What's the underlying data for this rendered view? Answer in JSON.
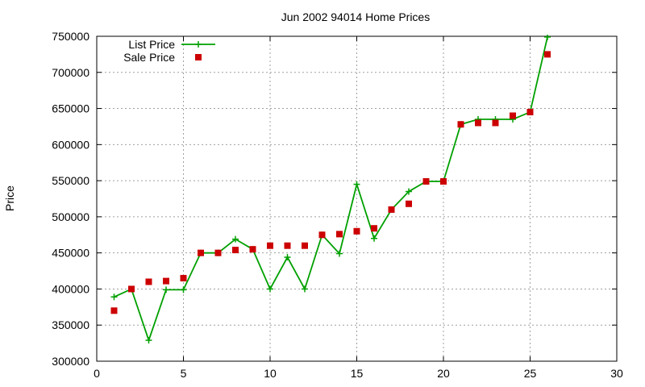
{
  "chart_data": {
    "type": "line",
    "title": "Jun 2002 94014 Home Prices",
    "xlabel": "",
    "ylabel": "Price",
    "xlim": [
      0,
      30
    ],
    "ylim": [
      300000,
      750000
    ],
    "xticks": [
      0,
      5,
      10,
      15,
      20,
      25,
      30
    ],
    "yticks": [
      300000,
      350000,
      400000,
      450000,
      500000,
      550000,
      600000,
      650000,
      700000,
      750000
    ],
    "grid": true,
    "legend_position": "top-left",
    "series": [
      {
        "name": "List Price",
        "style": "line-plus",
        "color": "#00a000",
        "x": [
          1,
          2,
          3,
          4,
          5,
          6,
          7,
          8,
          9,
          10,
          11,
          12,
          13,
          14,
          15,
          16,
          17,
          18,
          19,
          20,
          21,
          22,
          23,
          24,
          25,
          26
        ],
        "y": [
          389000,
          400000,
          329000,
          399000,
          399000,
          450000,
          450000,
          469000,
          455000,
          400000,
          444000,
          400000,
          475000,
          449000,
          545000,
          470000,
          510000,
          535000,
          549000,
          549000,
          628000,
          635000,
          635000,
          635000,
          645000,
          749000
        ]
      },
      {
        "name": "Sale Price",
        "style": "square",
        "color": "#cc0000",
        "x": [
          1,
          2,
          3,
          4,
          5,
          6,
          7,
          8,
          9,
          10,
          11,
          12,
          13,
          14,
          15,
          16,
          17,
          18,
          19,
          20,
          21,
          22,
          23,
          24,
          25,
          26
        ],
        "y": [
          370000,
          400000,
          410000,
          411000,
          415000,
          450000,
          450000,
          454000,
          455000,
          460000,
          460000,
          460000,
          475000,
          476000,
          480000,
          484000,
          510000,
          518000,
          549000,
          549000,
          628000,
          630000,
          630000,
          640000,
          645000,
          725000
        ]
      }
    ]
  }
}
